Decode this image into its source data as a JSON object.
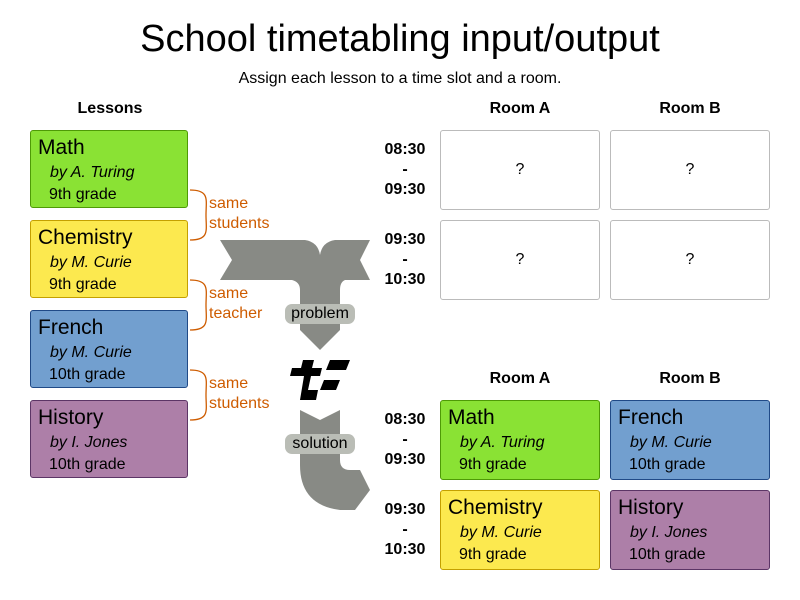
{
  "title": "School timetabling input/output",
  "subtitle": "Assign each lesson to a time slot and a room.",
  "colors": {
    "math": "#8ae234",
    "chemistry": "#fce94f",
    "french": "#729fcf",
    "history": "#ad7fa8",
    "relation": "#ce5c00",
    "arrow": "#888a85",
    "tag": "#babdb6"
  },
  "lessons_header": "Lessons",
  "lessons": [
    {
      "name": "Math",
      "by": "by  A. Turing",
      "grade": "9th grade"
    },
    {
      "name": "Chemistry",
      "by": "by  M. Curie",
      "grade": "9th grade"
    },
    {
      "name": "French",
      "by": "by  M. Curie",
      "grade": "10th grade"
    },
    {
      "name": "History",
      "by": "by  I. Jones",
      "grade": "10th grade"
    }
  ],
  "relations": [
    {
      "line1": "same",
      "line2": "students"
    },
    {
      "line1": "same",
      "line2": "teacher"
    },
    {
      "line1": "same",
      "line2": "students"
    }
  ],
  "flow": {
    "problem": "problem",
    "solution": "solution",
    "logo_icon": "timefold-logo"
  },
  "rooms": [
    "Room A",
    "Room B"
  ],
  "timeslots": [
    {
      "start": "08:30",
      "sep": "-",
      "end": "09:30"
    },
    {
      "start": "09:30",
      "sep": "-",
      "end": "10:30"
    }
  ],
  "unknown": "?",
  "solution": [
    [
      {
        "name": "Math",
        "by": "by  A. Turing",
        "grade": "9th grade"
      },
      {
        "name": "French",
        "by": "by  M. Curie",
        "grade": "10th grade"
      }
    ],
    [
      {
        "name": "Chemistry",
        "by": "by  M. Curie",
        "grade": "9th grade"
      },
      {
        "name": "History",
        "by": "by  I. Jones",
        "grade": "10th grade"
      }
    ]
  ]
}
